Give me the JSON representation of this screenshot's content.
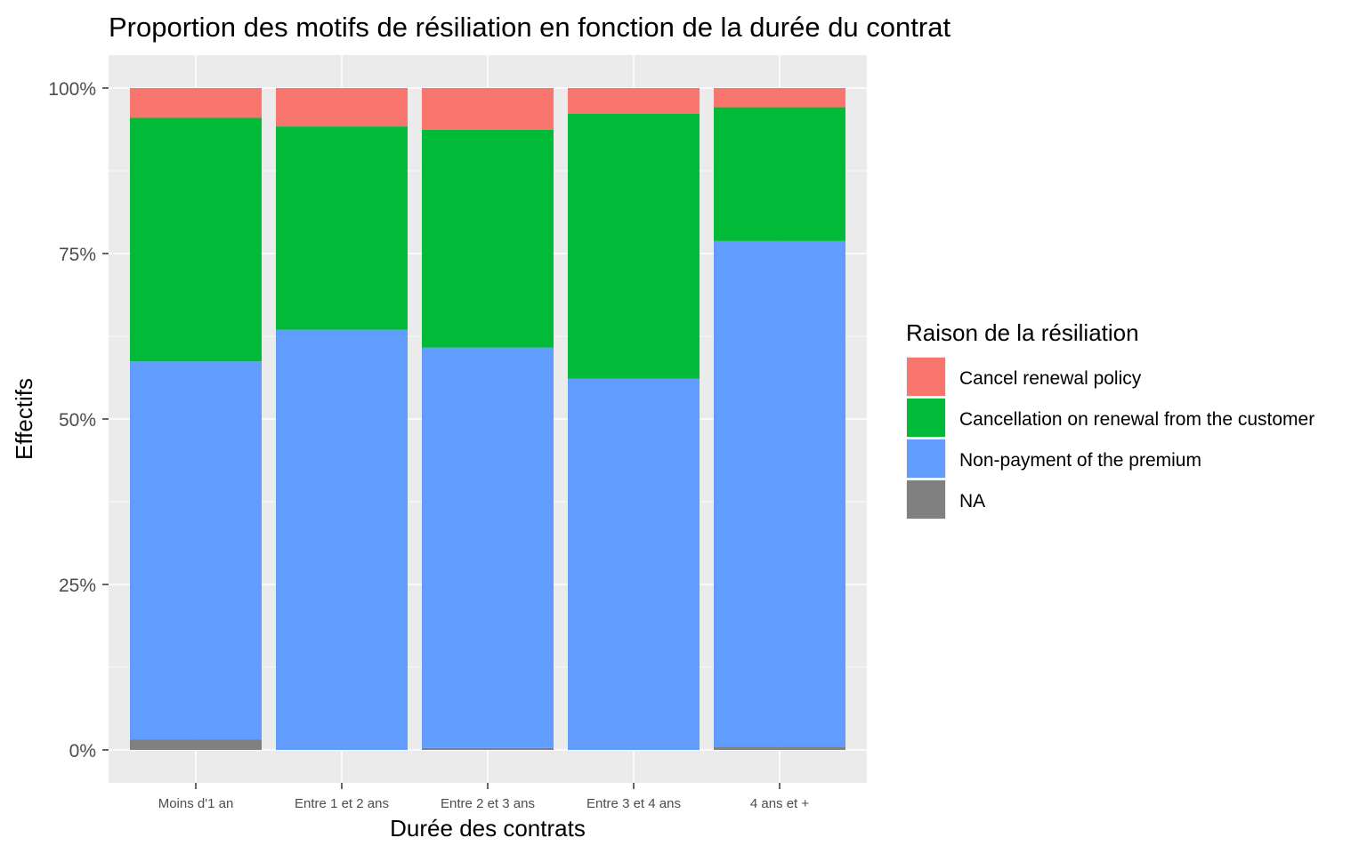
{
  "chart_data": {
    "type": "bar",
    "stacked": true,
    "normalized": true,
    "title": "Proportion des motifs de résiliation en fonction de la durée du contrat",
    "xlabel": "Durée des contrats",
    "ylabel": "Effectifs",
    "ylim": [
      0,
      1
    ],
    "yticks": [
      {
        "value": 0,
        "label": "0%"
      },
      {
        "value": 0.25,
        "label": "25%"
      },
      {
        "value": 0.5,
        "label": "50%"
      },
      {
        "value": 0.75,
        "label": "75%"
      },
      {
        "value": 1,
        "label": "100%"
      }
    ],
    "grid": true,
    "legend_position": "right",
    "legend_title": "Raison de la résiliation",
    "categories": [
      "Moins d'1 an",
      "Entre 1 et 2 ans",
      "Entre 2 et 3 ans",
      "Entre 3 et 4 ans",
      "4 ans et +"
    ],
    "series": [
      {
        "name": "Cancel renewal policy",
        "color": "#F8766D",
        "values": [
          0.045,
          0.058,
          0.063,
          0.039,
          0.029
        ]
      },
      {
        "name": "Cancellation on renewal from the customer",
        "color": "#00BA38",
        "values": [
          0.368,
          0.307,
          0.329,
          0.4,
          0.202
        ]
      },
      {
        "name": "Non-payment of the premium",
        "color": "#619CFF",
        "values": [
          0.571,
          0.635,
          0.605,
          0.561,
          0.764
        ]
      },
      {
        "name": "NA",
        "color": "#808080",
        "values": [
          0.016,
          0.0,
          0.003,
          0.0,
          0.005
        ]
      }
    ]
  }
}
